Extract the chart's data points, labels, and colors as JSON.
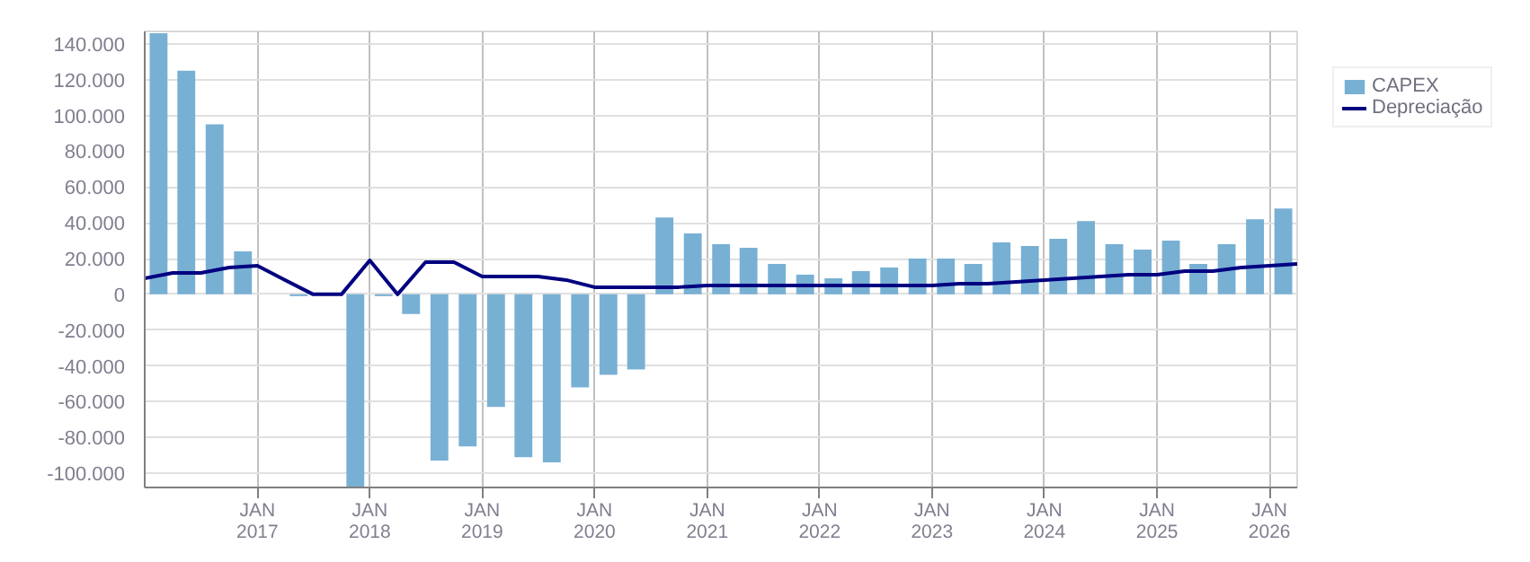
{
  "chart_data": {
    "type": "bar",
    "series": [
      {
        "name": "CAPEX",
        "color": "#78b0d4",
        "x": [
          "2016-02-15",
          "2016-05-15",
          "2016-08-15",
          "2016-11-15",
          "2017-02-15",
          "2017-05-15",
          "2017-08-15",
          "2017-11-15",
          "2018-02-15",
          "2018-05-15",
          "2018-08-15",
          "2018-11-15",
          "2019-02-15",
          "2019-05-15",
          "2019-08-15",
          "2019-11-15",
          "2020-02-15",
          "2020-05-15",
          "2020-08-15",
          "2020-11-15",
          "2021-02-15",
          "2021-05-15",
          "2021-08-15",
          "2021-11-15",
          "2022-02-15",
          "2022-05-15",
          "2022-08-15",
          "2022-11-15",
          "2023-02-15",
          "2023-05-15",
          "2023-08-15",
          "2023-11-15",
          "2024-02-15",
          "2024-05-15",
          "2024-08-15",
          "2024-11-15",
          "2025-02-15",
          "2025-05-15",
          "2025-08-15",
          "2025-11-15",
          "2026-02-15"
        ],
        "values": [
          146000,
          125000,
          95000,
          24000,
          null,
          -1000,
          null,
          -108000,
          -1000,
          -11000,
          -93000,
          -85000,
          -63000,
          -91000,
          -94000,
          -52000,
          -45000,
          -42000,
          43000,
          34000,
          28000,
          26000,
          17000,
          11000,
          9000,
          13000,
          15000,
          20000,
          20000,
          17000,
          29000,
          27000,
          31000,
          41000,
          28000,
          25000,
          30000,
          17000,
          28000,
          42000,
          48000
        ]
      },
      {
        "name": "Depreciação",
        "type": "line",
        "color": "#000080",
        "x": [
          "2016-01-01",
          "2016-04-01",
          "2016-07-01",
          "2016-10-01",
          "2017-01-01",
          "2017-04-01",
          "2017-07-01",
          "2017-10-01",
          "2018-01-01",
          "2018-04-01",
          "2018-07-01",
          "2018-10-01",
          "2019-01-01",
          "2019-04-01",
          "2019-07-01",
          "2019-10-01",
          "2020-01-01",
          "2020-04-01",
          "2020-07-01",
          "2020-10-01",
          "2021-01-01",
          "2021-04-01",
          "2021-07-01",
          "2021-10-01",
          "2022-01-01",
          "2022-04-01",
          "2022-07-01",
          "2022-10-01",
          "2023-01-01",
          "2023-04-01",
          "2023-07-01",
          "2023-10-01",
          "2024-01-01",
          "2024-04-01",
          "2024-07-01",
          "2024-10-01",
          "2025-01-01",
          "2025-04-01",
          "2025-07-01",
          "2025-10-01",
          "2026-01-01",
          "2026-04-01"
        ],
        "values": [
          9000,
          12000,
          12000,
          15000,
          16000,
          8000,
          0,
          0,
          19000,
          0,
          18000,
          18000,
          10000,
          10000,
          10000,
          8000,
          4000,
          4000,
          4000,
          4000,
          5000,
          5000,
          5000,
          5000,
          5000,
          5000,
          5000,
          5000,
          5000,
          6000,
          6000,
          7000,
          8000,
          9000,
          10000,
          11000,
          11000,
          13000,
          13000,
          15000,
          16000,
          17000
        ]
      }
    ],
    "xlim": [
      "2016-01-01",
      "2026-04-01"
    ],
    "xticks": [
      {
        "value": "2017-01-01",
        "label": "JAN\n2017"
      },
      {
        "value": "2018-01-01",
        "label": "JAN\n2018"
      },
      {
        "value": "2019-01-01",
        "label": "JAN\n2019"
      },
      {
        "value": "2020-01-01",
        "label": "JAN\n2020"
      },
      {
        "value": "2021-01-01",
        "label": "JAN\n2021"
      },
      {
        "value": "2022-01-01",
        "label": "JAN\n2022"
      },
      {
        "value": "2023-01-01",
        "label": "JAN\n2023"
      },
      {
        "value": "2024-01-01",
        "label": "JAN\n2024"
      },
      {
        "value": "2025-01-01",
        "label": "JAN\n2025"
      },
      {
        "value": "2026-01-01",
        "label": "JAN\n2026"
      }
    ],
    "ylim": [
      -108000,
      147000
    ],
    "yticks": [
      {
        "value": -100000,
        "label": "-100.000"
      },
      {
        "value": -80000,
        "label": "-80.000"
      },
      {
        "value": -60000,
        "label": "-60.000"
      },
      {
        "value": -40000,
        "label": "-40.000"
      },
      {
        "value": -20000,
        "label": "-20.000"
      },
      0,
      {
        "value": 20000,
        "label": "20.000"
      },
      {
        "value": 40000,
        "label": "40.000"
      },
      {
        "value": 60000,
        "label": "60.000"
      },
      {
        "value": 80000,
        "label": "80.000"
      },
      {
        "value": 100000,
        "label": "100.000"
      },
      {
        "value": 120000,
        "label": "120.000"
      },
      {
        "value": 140000,
        "label": "140.000"
      }
    ],
    "grid": true,
    "legend": "top right",
    "line_style": "solid",
    "marker": "none"
  }
}
